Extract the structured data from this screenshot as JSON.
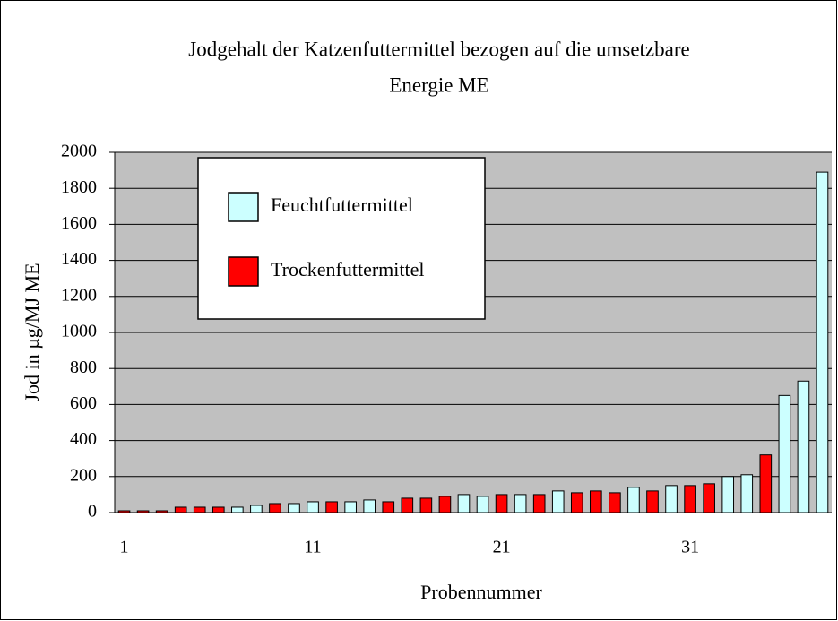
{
  "chart_data": {
    "type": "bar",
    "title": "Jodgehalt der Katzenfuttermittel bezogen auf die umsetzbare",
    "subtitle": "Energie ME",
    "x_label": "Probennummer",
    "y_label": "Jod in µg/MJ ME",
    "categories": [
      "1",
      null,
      null,
      null,
      null,
      null,
      null,
      null,
      null,
      null,
      "11",
      null,
      null,
      null,
      null,
      null,
      null,
      null,
      null,
      null,
      "21",
      null,
      null,
      null,
      null,
      null,
      null,
      null,
      null,
      null,
      "31",
      null,
      null,
      null,
      null,
      null,
      null,
      null
    ],
    "series": [
      {
        "name": "Feuchtfuttermittel",
        "color": "#ccffff",
        "values": [
          null,
          null,
          null,
          null,
          null,
          null,
          30,
          40,
          null,
          50,
          60,
          null,
          60,
          70,
          null,
          null,
          null,
          null,
          100,
          90,
          null,
          100,
          null,
          120,
          null,
          null,
          null,
          140,
          null,
          150,
          null,
          null,
          200,
          210,
          null,
          650,
          730,
          1890
        ]
      },
      {
        "name": "Trockenfuttermittel",
        "color": "#ff0000",
        "values": [
          10,
          10,
          10,
          30,
          30,
          30,
          null,
          null,
          50,
          null,
          null,
          60,
          null,
          null,
          60,
          80,
          80,
          90,
          null,
          null,
          100,
          null,
          100,
          null,
          110,
          120,
          110,
          null,
          120,
          null,
          150,
          160,
          null,
          null,
          320,
          null,
          null,
          null
        ]
      }
    ],
    "ylim": [
      0,
      2000
    ],
    "yticks": [
      0,
      200,
      400,
      600,
      800,
      1000,
      1200,
      1400,
      1600,
      1800,
      2000
    ],
    "grid": true,
    "legend": "upper-left",
    "plot_background": "#c0c0c0"
  }
}
